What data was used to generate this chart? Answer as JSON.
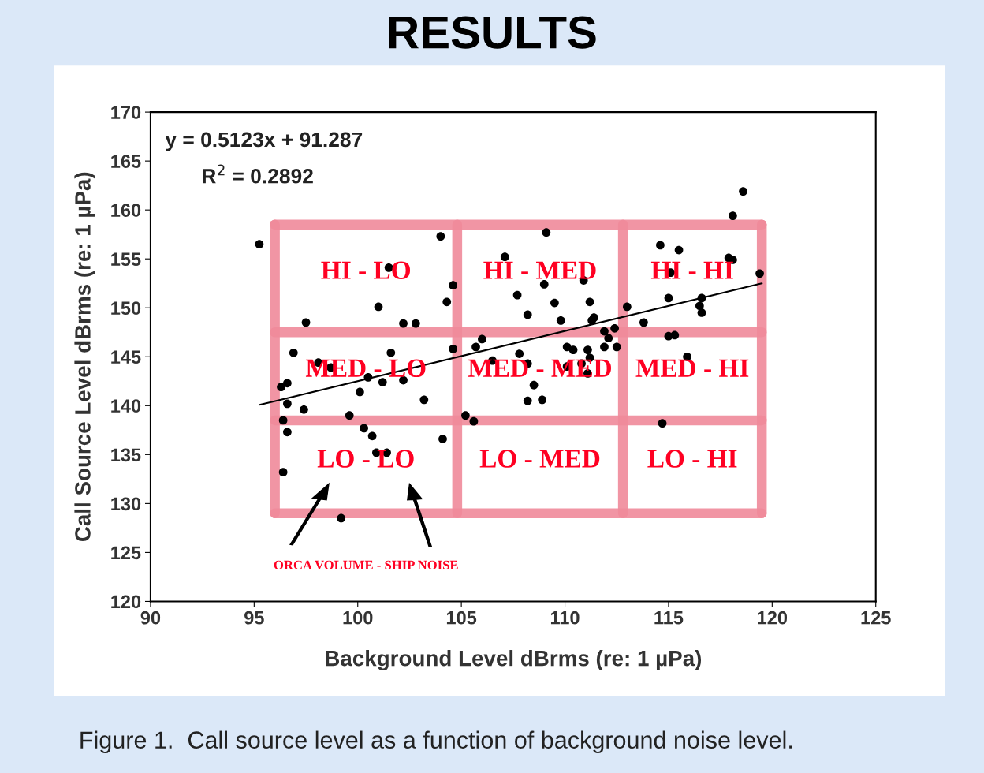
{
  "chart_data": {
    "type": "scatter",
    "title": "RESULTS",
    "xlabel": "Background Level dBrms (re: 1 µPa)",
    "ylabel": "Call Source Level dBrms (re: 1 µPa)",
    "xlim": [
      90,
      125
    ],
    "xticks": [
      90,
      95,
      100,
      105,
      110,
      115,
      120,
      125
    ],
    "ylim": [
      120,
      170
    ],
    "yticks": [
      120,
      125,
      130,
      135,
      140,
      145,
      150,
      155,
      160,
      165,
      170
    ],
    "grid": false,
    "series": [
      {
        "marker": "circle",
        "color": "#000000",
        "x": [
          95.25,
          104.0,
          101.5,
          104.6,
          104.3,
          101.0,
          97.5,
          102.2,
          102.8,
          96.9,
          101.6,
          104.6,
          98.1,
          98.7,
          100.5,
          96.6,
          96.3,
          101.2,
          102.2,
          100.1,
          103.2,
          96.6,
          97.4,
          99.6,
          96.4,
          100.3,
          96.6,
          100.7,
          104.1,
          100.9,
          101.4,
          96.4,
          99.2,
          109.1,
          107.1,
          110.9,
          109.0,
          107.7,
          109.5,
          111.2,
          108.2,
          109.8,
          111.3,
          111.4,
          113.0,
          106.0,
          105.7,
          111.9,
          112.4,
          112.1,
          111.9,
          112.5,
          110.1,
          110.4,
          111.1,
          111.2,
          110.8,
          110.1,
          107.8,
          106.5,
          108.2,
          111.1,
          108.5,
          108.2,
          108.9,
          105.2,
          105.6,
          118.6,
          118.1,
          114.6,
          115.5,
          117.9,
          118.1,
          115.1,
          119.4,
          115.0,
          116.6,
          116.5,
          116.6,
          113.8,
          115.0,
          115.3,
          115.9,
          114.7
        ],
        "values": [
          156.5,
          157.3,
          154.1,
          152.3,
          150.6,
          150.1,
          148.5,
          148.4,
          148.4,
          145.4,
          145.4,
          145.8,
          144.4,
          143.9,
          142.9,
          142.3,
          141.9,
          142.4,
          142.6,
          141.4,
          140.6,
          140.2,
          139.6,
          139.0,
          138.5,
          137.7,
          137.3,
          136.9,
          136.6,
          135.2,
          135.2,
          133.2,
          128.5,
          157.7,
          155.2,
          152.8,
          152.4,
          151.3,
          150.5,
          150.6,
          149.3,
          148.7,
          148.7,
          149.0,
          150.1,
          146.8,
          146.0,
          147.6,
          147.9,
          146.9,
          146.0,
          146.0,
          146.0,
          145.7,
          145.7,
          144.9,
          144.3,
          144.0,
          145.3,
          144.6,
          144.3,
          143.3,
          142.1,
          140.5,
          140.6,
          139.0,
          138.4,
          161.9,
          159.4,
          156.4,
          155.9,
          155.1,
          154.9,
          153.6,
          153.5,
          151.0,
          151.0,
          150.2,
          149.5,
          148.5,
          147.1,
          147.2,
          145.0,
          138.2
        ]
      },
      {
        "type": "line",
        "color": "#000000",
        "x": [
          95.3,
          119.5
        ],
        "values": [
          140.1,
          152.5
        ]
      }
    ],
    "ref_lines": [
      {
        "axis": "x",
        "value": 96,
        "color": "#f08a9a"
      },
      {
        "axis": "x",
        "value": 104.8,
        "color": "#f08a9a"
      },
      {
        "axis": "x",
        "value": 112.8,
        "color": "#f08a9a"
      },
      {
        "axis": "x",
        "value": 119.5,
        "color": "#f08a9a"
      },
      {
        "axis": "y",
        "value": 129,
        "color": "#f08a9a"
      },
      {
        "axis": "y",
        "value": 138.5,
        "color": "#f08a9a"
      },
      {
        "axis": "y",
        "value": 147.5,
        "color": "#f08a9a"
      },
      {
        "axis": "y",
        "value": 158.5,
        "color": "#f08a9a"
      }
    ],
    "annotations": [
      "y = 0.5123x + 91.287",
      "R$^{2}$ = 0.2892",
      "HI - LO",
      "HI - MED",
      "HI - HI",
      "MED - LO",
      "MED - MED",
      "MED - HI",
      "LO - LO",
      "LO - MED",
      "LO - HI",
      "ORCA VOLUME - SHIP NOISE",
      "Figure 1.  Call source level as a function of background noise level."
    ]
  }
}
